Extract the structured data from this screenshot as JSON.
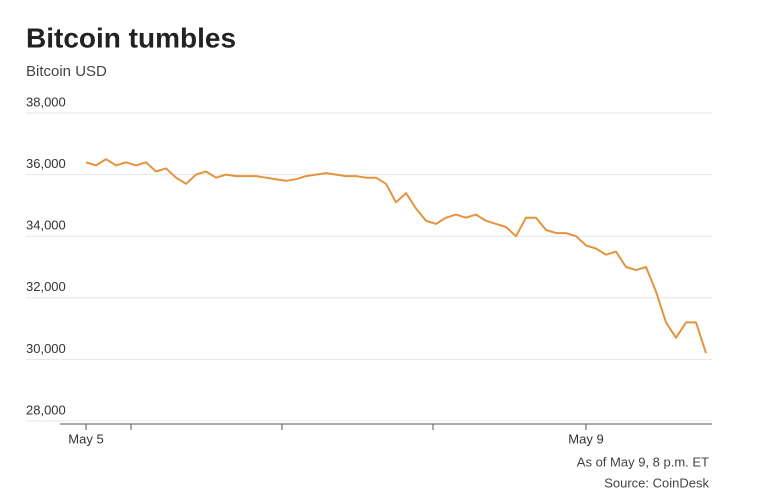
{
  "chart_data": {
    "type": "line",
    "title": "Bitcoin tumbles",
    "subtitle": "Bitcoin USD",
    "categories": [
      "May 5",
      null,
      null,
      null,
      null,
      null,
      null,
      null,
      null,
      null,
      null,
      null,
      null,
      null,
      null,
      null,
      null,
      null,
      null,
      null,
      null,
      null,
      null,
      null,
      null,
      null,
      null,
      null,
      null,
      null,
      null,
      null,
      null,
      null,
      null,
      null,
      null,
      null,
      null,
      null,
      null,
      null,
      null,
      null,
      null,
      null,
      null,
      null,
      null,
      null,
      "May 9",
      null,
      null,
      null,
      null,
      null,
      null,
      null,
      null,
      null,
      null,
      null,
      null
    ],
    "series": [
      {
        "name": "Bitcoin USD",
        "color": "#e3943f",
        "values": [
          36400,
          36300,
          36500,
          36300,
          36400,
          36300,
          36400,
          36100,
          36200,
          35900,
          35700,
          36000,
          36100,
          35900,
          36000,
          35950,
          35950,
          35950,
          35900,
          35850,
          35800,
          35850,
          35950,
          36000,
          36050,
          36000,
          35950,
          35950,
          35900,
          35900,
          35700,
          35100,
          35400,
          34900,
          34500,
          34400,
          34600,
          34700,
          34600,
          34700,
          34500,
          34400,
          34300,
          34000,
          34600,
          34600,
          34200,
          34100,
          34100,
          34000,
          33700,
          33600,
          33400,
          33500,
          33000,
          32900,
          33000,
          32200,
          31200,
          30700,
          31200,
          31200,
          30200
        ]
      }
    ],
    "ylim": [
      28000,
      38000
    ],
    "yticks": [
      {
        "value": 28000,
        "label": "28,000"
      },
      {
        "value": 30000,
        "label": "30,000"
      },
      {
        "value": 32000,
        "label": "32,000"
      },
      {
        "value": 34000,
        "label": "34,000"
      },
      {
        "value": 36000,
        "label": "36,000"
      },
      {
        "value": 38000,
        "label": "38,000"
      }
    ],
    "grid": true,
    "annotations": [
      "As of May 9, 8 p.m. ET",
      "Source: CoinDesk"
    ]
  }
}
